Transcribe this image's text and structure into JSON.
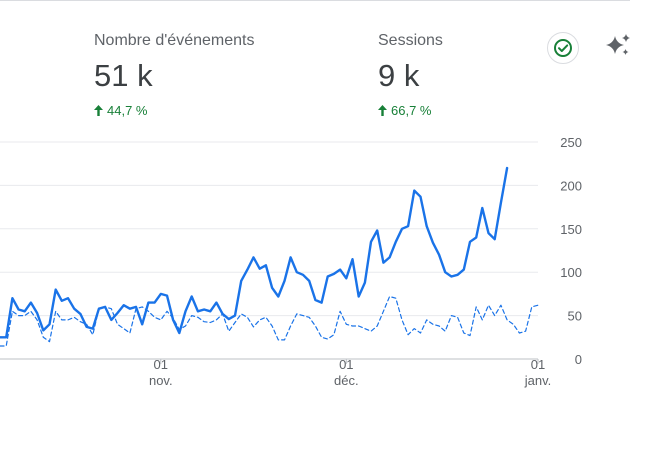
{
  "metrics": [
    {
      "label": "Nombre d'événements",
      "value": "51 k",
      "change": "44,7 %"
    },
    {
      "label": "Sessions",
      "value": "9 k",
      "change": "66,7 %"
    }
  ],
  "colors": {
    "primary": "#1a73e8",
    "up": "#188038",
    "grid": "#e8eaed",
    "text": "#5f6368"
  },
  "icons": {
    "check": "check-circle-icon",
    "sparkle": "sparkle-icon",
    "arrow": "arrow-up-icon"
  },
  "chart_data": {
    "type": "line",
    "ylim": [
      0,
      250
    ],
    "yticks": [
      0,
      50,
      100,
      150,
      200,
      250
    ],
    "xticks": [
      {
        "day": "01",
        "month": "nov.",
        "index": 26
      },
      {
        "day": "01",
        "month": "déc.",
        "index": 56
      },
      {
        "day": "01",
        "month": "janv.",
        "index": 87
      }
    ],
    "series": [
      {
        "name": "",
        "style": "solid",
        "values": [
          25,
          25,
          70,
          57,
          55,
          65,
          53,
          33,
          40,
          80,
          67,
          70,
          58,
          52,
          37,
          35,
          58,
          60,
          45,
          53,
          62,
          58,
          60,
          40,
          65,
          65,
          75,
          73,
          45,
          30,
          55,
          72,
          55,
          57,
          55,
          65,
          52,
          46,
          50,
          90,
          103,
          117,
          104,
          108,
          82,
          72,
          90,
          117,
          100,
          97,
          90,
          68,
          65,
          95,
          98,
          103,
          93,
          115,
          72,
          88,
          135,
          148,
          111,
          117,
          135,
          150,
          153,
          194,
          187,
          153,
          134,
          120,
          100,
          95,
          97,
          103,
          135,
          140,
          174,
          145,
          138,
          180,
          220
        ]
      },
      {
        "name": "",
        "style": "dashed",
        "values": [
          15,
          15,
          55,
          50,
          50,
          55,
          45,
          25,
          20,
          55,
          45,
          45,
          48,
          43,
          40,
          28,
          58,
          60,
          58,
          40,
          35,
          30,
          58,
          60,
          55,
          48,
          45,
          55,
          47,
          34,
          38,
          50,
          48,
          43,
          42,
          45,
          52,
          32,
          42,
          52,
          48,
          37,
          45,
          48,
          38,
          22,
          22,
          38,
          52,
          50,
          48,
          38,
          25,
          23,
          28,
          55,
          40,
          38,
          38,
          35,
          32,
          38,
          55,
          72,
          70,
          45,
          28,
          35,
          30,
          45,
          40,
          38,
          32,
          50,
          48,
          30,
          27,
          60,
          45,
          62,
          50,
          62,
          45,
          40,
          30,
          32,
          60,
          62
        ]
      }
    ]
  }
}
